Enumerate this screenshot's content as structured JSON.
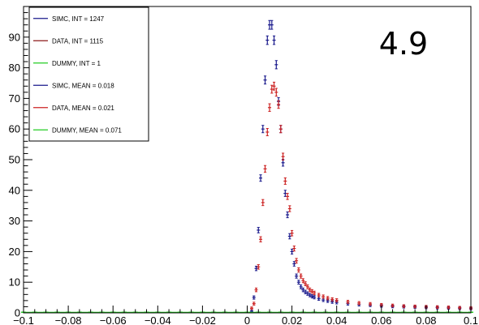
{
  "chart_data": {
    "type": "scatter",
    "title": "",
    "xlabel": "",
    "ylabel": "",
    "xlim": [
      -0.1,
      0.1
    ],
    "ylim": [
      0,
      100
    ],
    "grid": false,
    "legend_position": "top-left",
    "annotation": "4.9",
    "x_ticks": [
      -0.1,
      -0.08,
      -0.06,
      -0.04,
      -0.02,
      0,
      0.02,
      0.04,
      0.06,
      0.08,
      0.1
    ],
    "x_tick_labels": [
      "−0.1",
      "−0.08",
      "−0.06",
      "−0.04",
      "−0.02",
      "0",
      "0.02",
      "0.04",
      "0.06",
      "0.08",
      "0.1"
    ],
    "y_ticks": [
      0,
      10,
      20,
      30,
      40,
      50,
      60,
      70,
      80,
      90
    ],
    "y_tick_labels": [
      "0",
      "10",
      "20",
      "30",
      "40",
      "50",
      "60",
      "70",
      "80",
      "90"
    ],
    "legend": [
      {
        "label": "SIMC, INT = 1247",
        "color": "#1a1a8c"
      },
      {
        "label": "DATA, INT = 1115",
        "color": "#8c1a1a"
      },
      {
        "label": "DUMMY, INT = 1",
        "color": "#22cc22"
      },
      {
        "label": "SIMC, MEAN = 0.018",
        "color": "#1a1a8c"
      },
      {
        "label": "DATA, MEAN = 0.021",
        "color": "#cc2222"
      },
      {
        "label": "DUMMY, MEAN = 0.071",
        "color": "#22cc22"
      }
    ],
    "series": [
      {
        "color": "#1a1a8c",
        "x": [
          0.002,
          0.003,
          0.004,
          0.005,
          0.006,
          0.007,
          0.008,
          0.009,
          0.01,
          0.011,
          0.012,
          0.013,
          0.014,
          0.015,
          0.016,
          0.017,
          0.018,
          0.019,
          0.02,
          0.021,
          0.022,
          0.023,
          0.024,
          0.025,
          0.026,
          0.027,
          0.028,
          0.029,
          0.03,
          0.032,
          0.034,
          0.036,
          0.038,
          0.04,
          0.045,
          0.05,
          0.055,
          0.06,
          0.065,
          0.07,
          0.075,
          0.08,
          0.085,
          0.09,
          0.095,
          0.1
        ],
        "y": [
          0.5,
          5,
          14.5,
          27,
          44,
          60,
          76,
          89,
          94,
          94,
          89,
          81,
          69,
          60,
          49,
          39,
          32,
          25,
          20,
          16,
          12,
          10,
          8.5,
          7.5,
          6.8,
          6.3,
          5.8,
          5.4,
          5.1,
          4.6,
          4.2,
          3.9,
          3.6,
          3.4,
          3.0,
          2.7,
          2.5,
          2.3,
          2.1,
          2.0,
          1.9,
          1.8,
          1.7,
          1.6,
          1.5,
          1.4
        ]
      },
      {
        "color": "#cc2222",
        "x": [
          0.002,
          0.003,
          0.004,
          0.005,
          0.006,
          0.007,
          0.008,
          0.009,
          0.01,
          0.011,
          0.012,
          0.013,
          0.014,
          0.015,
          0.016,
          0.017,
          0.018,
          0.019,
          0.02,
          0.021,
          0.022,
          0.023,
          0.024,
          0.025,
          0.026,
          0.027,
          0.028,
          0.029,
          0.03,
          0.032,
          0.034,
          0.036,
          0.038,
          0.04,
          0.045,
          0.05,
          0.055,
          0.06,
          0.065,
          0.07,
          0.075,
          0.08,
          0.085,
          0.09,
          0.095,
          0.1
        ],
        "y": [
          1.5,
          3,
          7.5,
          15,
          24,
          36,
          47,
          59,
          67,
          73,
          74,
          72,
          68,
          60,
          51,
          43,
          38,
          34,
          26,
          21,
          17,
          14,
          12,
          10.5,
          9.5,
          8.5,
          7.5,
          7,
          6.5,
          5.8,
          5.3,
          4.8,
          4.4,
          4.1,
          3.6,
          3.2,
          2.9,
          2.6,
          2.4,
          2.2,
          2.1,
          2.0,
          1.9,
          1.8,
          1.7,
          1.6
        ]
      },
      {
        "color": "#22cc22",
        "x": [
          -0.1,
          -0.095,
          -0.09,
          -0.085,
          -0.08,
          -0.075,
          -0.07,
          -0.065,
          -0.06,
          -0.055,
          -0.05,
          -0.045,
          -0.04,
          -0.035,
          -0.03,
          -0.025,
          -0.02,
          -0.015,
          -0.01,
          -0.005,
          0,
          0.005,
          0.01,
          0.015,
          0.02,
          0.025,
          0.03,
          0.035,
          0.04,
          0.045,
          0.05,
          0.055,
          0.06,
          0.065,
          0.07,
          0.075,
          0.08,
          0.085,
          0.09,
          0.095,
          0.1
        ],
        "y": [
          0.2,
          0.2,
          0.2,
          0.2,
          0.2,
          0.2,
          0.2,
          0.2,
          0.2,
          0.2,
          0.2,
          0.2,
          0.2,
          0.2,
          0.2,
          0.2,
          0.2,
          0.2,
          0.2,
          0.2,
          0.2,
          0.2,
          0.2,
          0.2,
          0.2,
          0.2,
          0.2,
          0.2,
          0.2,
          0.2,
          0.2,
          0.2,
          0.2,
          0.2,
          0.2,
          0.2,
          0.2,
          0.2,
          0.2,
          0.2,
          0.2
        ]
      }
    ]
  }
}
